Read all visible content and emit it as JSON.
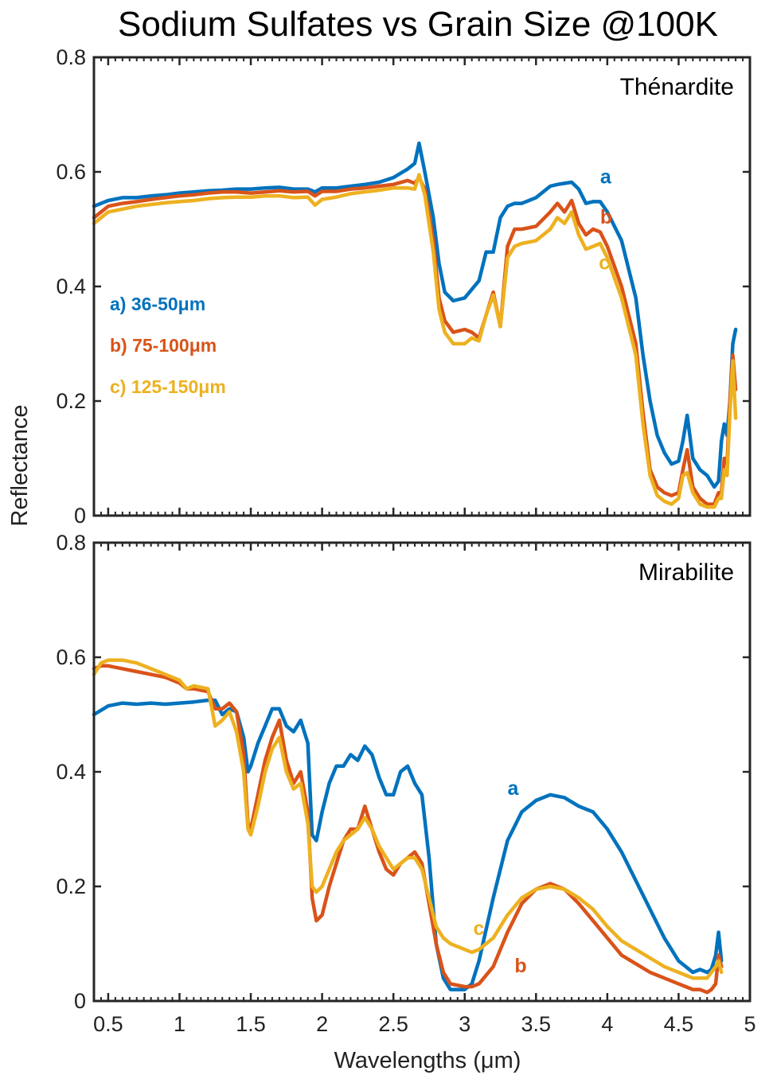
{
  "figure": {
    "title": "Sodium Sulfates vs Grain Size @100K",
    "xlabel": "Wavelengths (μm)",
    "ylabel": "Reflectance"
  },
  "colors": {
    "a": "#0072bd",
    "b": "#d95319",
    "c": "#edb120",
    "axis": "#262626"
  },
  "chart_data": [
    {
      "type": "line",
      "panel_label": "Thénardite",
      "xlim": [
        0.4,
        5.0
      ],
      "ylim": [
        0,
        0.8
      ],
      "xticks": [
        0.5,
        1,
        1.5,
        2,
        2.5,
        3,
        3.5,
        4,
        4.5,
        5
      ],
      "yticks": [
        0,
        0.2,
        0.4,
        0.6,
        0.8
      ],
      "grid": false,
      "legend": [
        {
          "text": "a) 36-50μm",
          "series": "a"
        },
        {
          "text": "b) 75-100μm",
          "series": "b"
        },
        {
          "text": "c) 125-150μm",
          "series": "c"
        }
      ],
      "curve_labels": [
        {
          "series": "a",
          "text": "a",
          "x": 3.95,
          "y": 0.58
        },
        {
          "series": "b",
          "text": "b",
          "x": 3.95,
          "y": 0.51
        },
        {
          "series": "c",
          "text": "c",
          "x": 3.94,
          "y": 0.43
        }
      ],
      "series": [
        {
          "name": "a",
          "x": [
            0.4,
            0.5,
            0.6,
            0.7,
            0.8,
            0.9,
            1.0,
            1.1,
            1.2,
            1.3,
            1.4,
            1.5,
            1.6,
            1.7,
            1.8,
            1.9,
            1.95,
            2.0,
            2.1,
            2.2,
            2.3,
            2.4,
            2.5,
            2.6,
            2.65,
            2.68,
            2.72,
            2.78,
            2.82,
            2.86,
            2.92,
            3.0,
            3.1,
            3.15,
            3.2,
            3.25,
            3.3,
            3.35,
            3.4,
            3.5,
            3.6,
            3.65,
            3.7,
            3.75,
            3.8,
            3.85,
            3.9,
            3.95,
            4.0,
            4.1,
            4.2,
            4.25,
            4.3,
            4.35,
            4.4,
            4.45,
            4.5,
            4.53,
            4.56,
            4.6,
            4.65,
            4.7,
            4.75,
            4.78,
            4.8,
            4.82,
            4.84,
            4.86,
            4.88,
            4.9
          ],
          "y": [
            0.54,
            0.55,
            0.555,
            0.555,
            0.558,
            0.56,
            0.563,
            0.565,
            0.567,
            0.568,
            0.57,
            0.57,
            0.572,
            0.573,
            0.57,
            0.57,
            0.565,
            0.572,
            0.572,
            0.575,
            0.578,
            0.582,
            0.59,
            0.605,
            0.615,
            0.65,
            0.6,
            0.52,
            0.44,
            0.39,
            0.375,
            0.38,
            0.41,
            0.46,
            0.46,
            0.52,
            0.54,
            0.545,
            0.545,
            0.555,
            0.575,
            0.578,
            0.58,
            0.582,
            0.57,
            0.545,
            0.548,
            0.548,
            0.53,
            0.48,
            0.38,
            0.28,
            0.2,
            0.14,
            0.11,
            0.09,
            0.095,
            0.13,
            0.175,
            0.1,
            0.08,
            0.07,
            0.05,
            0.06,
            0.13,
            0.16,
            0.14,
            0.2,
            0.3,
            0.325
          ]
        },
        {
          "name": "b",
          "x": [
            0.4,
            0.5,
            0.6,
            0.7,
            0.8,
            0.9,
            1.0,
            1.1,
            1.2,
            1.3,
            1.4,
            1.5,
            1.6,
            1.7,
            1.8,
            1.9,
            1.95,
            2.0,
            2.1,
            2.2,
            2.3,
            2.4,
            2.5,
            2.6,
            2.65,
            2.68,
            2.72,
            2.78,
            2.82,
            2.86,
            2.92,
            3.0,
            3.05,
            3.1,
            3.15,
            3.2,
            3.25,
            3.3,
            3.35,
            3.4,
            3.5,
            3.6,
            3.65,
            3.7,
            3.75,
            3.8,
            3.85,
            3.9,
            3.95,
            4.0,
            4.1,
            4.2,
            4.25,
            4.3,
            4.35,
            4.4,
            4.45,
            4.5,
            4.53,
            4.56,
            4.6,
            4.65,
            4.7,
            4.75,
            4.78,
            4.8,
            4.82,
            4.84,
            4.86,
            4.88,
            4.9
          ],
          "y": [
            0.52,
            0.54,
            0.545,
            0.548,
            0.552,
            0.555,
            0.558,
            0.56,
            0.563,
            0.565,
            0.565,
            0.563,
            0.565,
            0.567,
            0.565,
            0.566,
            0.558,
            0.566,
            0.566,
            0.57,
            0.572,
            0.575,
            0.578,
            0.585,
            0.58,
            0.59,
            0.57,
            0.48,
            0.38,
            0.34,
            0.32,
            0.325,
            0.32,
            0.31,
            0.35,
            0.39,
            0.33,
            0.47,
            0.5,
            0.5,
            0.505,
            0.53,
            0.545,
            0.53,
            0.55,
            0.51,
            0.49,
            0.5,
            0.495,
            0.47,
            0.4,
            0.3,
            0.18,
            0.08,
            0.05,
            0.04,
            0.035,
            0.04,
            0.08,
            0.115,
            0.05,
            0.03,
            0.02,
            0.02,
            0.04,
            0.04,
            0.1,
            0.09,
            0.2,
            0.28,
            0.22
          ]
        },
        {
          "name": "c",
          "x": [
            0.4,
            0.5,
            0.6,
            0.7,
            0.8,
            0.9,
            1.0,
            1.1,
            1.2,
            1.3,
            1.4,
            1.5,
            1.6,
            1.7,
            1.8,
            1.9,
            1.95,
            2.0,
            2.1,
            2.2,
            2.3,
            2.4,
            2.5,
            2.6,
            2.65,
            2.68,
            2.72,
            2.78,
            2.82,
            2.86,
            2.92,
            3.0,
            3.05,
            3.1,
            3.15,
            3.2,
            3.25,
            3.3,
            3.35,
            3.4,
            3.5,
            3.6,
            3.65,
            3.7,
            3.75,
            3.8,
            3.85,
            3.9,
            3.95,
            4.0,
            4.1,
            4.2,
            4.25,
            4.3,
            4.35,
            4.4,
            4.45,
            4.5,
            4.53,
            4.56,
            4.6,
            4.65,
            4.7,
            4.75,
            4.78,
            4.8,
            4.82,
            4.84,
            4.86,
            4.88,
            4.9
          ],
          "y": [
            0.51,
            0.53,
            0.535,
            0.54,
            0.543,
            0.546,
            0.548,
            0.55,
            0.553,
            0.555,
            0.556,
            0.556,
            0.558,
            0.558,
            0.555,
            0.556,
            0.542,
            0.552,
            0.556,
            0.562,
            0.565,
            0.568,
            0.572,
            0.572,
            0.57,
            0.595,
            0.56,
            0.46,
            0.36,
            0.32,
            0.3,
            0.3,
            0.31,
            0.305,
            0.35,
            0.385,
            0.33,
            0.45,
            0.47,
            0.475,
            0.48,
            0.5,
            0.52,
            0.51,
            0.53,
            0.49,
            0.465,
            0.47,
            0.475,
            0.45,
            0.38,
            0.28,
            0.16,
            0.07,
            0.035,
            0.025,
            0.02,
            0.03,
            0.07,
            0.075,
            0.04,
            0.02,
            0.015,
            0.015,
            0.03,
            0.03,
            0.08,
            0.07,
            0.18,
            0.27,
            0.17
          ]
        }
      ]
    },
    {
      "type": "line",
      "panel_label": "Mirabilite",
      "xlim": [
        0.4,
        5.0
      ],
      "ylim": [
        0,
        0.8
      ],
      "xticks": [
        0.5,
        1,
        1.5,
        2,
        2.5,
        3,
        3.5,
        4,
        4.5,
        5
      ],
      "yticks": [
        0,
        0.2,
        0.4,
        0.6,
        0.8
      ],
      "grid": false,
      "curve_labels": [
        {
          "series": "a",
          "text": "a",
          "x": 3.3,
          "y": 0.36
        },
        {
          "series": "b",
          "text": "b",
          "x": 3.35,
          "y": 0.05
        },
        {
          "series": "c",
          "text": "c",
          "x": 3.06,
          "y": 0.115
        }
      ],
      "series": [
        {
          "name": "a",
          "x": [
            0.4,
            0.5,
            0.6,
            0.7,
            0.8,
            0.9,
            1.0,
            1.1,
            1.2,
            1.25,
            1.3,
            1.35,
            1.4,
            1.45,
            1.48,
            1.5,
            1.55,
            1.6,
            1.65,
            1.7,
            1.75,
            1.8,
            1.85,
            1.9,
            1.93,
            1.96,
            2.0,
            2.05,
            2.1,
            2.15,
            2.2,
            2.25,
            2.3,
            2.35,
            2.4,
            2.45,
            2.5,
            2.55,
            2.6,
            2.65,
            2.7,
            2.75,
            2.8,
            2.85,
            2.9,
            3.0,
            3.05,
            3.1,
            3.2,
            3.3,
            3.4,
            3.5,
            3.6,
            3.7,
            3.8,
            3.9,
            4.0,
            4.1,
            4.2,
            4.3,
            4.4,
            4.5,
            4.55,
            4.6,
            4.65,
            4.7,
            4.73,
            4.76,
            4.78,
            4.8
          ],
          "y": [
            0.5,
            0.515,
            0.52,
            0.518,
            0.52,
            0.518,
            0.52,
            0.522,
            0.525,
            0.525,
            0.5,
            0.51,
            0.505,
            0.46,
            0.4,
            0.41,
            0.45,
            0.48,
            0.51,
            0.51,
            0.48,
            0.47,
            0.49,
            0.45,
            0.29,
            0.28,
            0.33,
            0.38,
            0.41,
            0.41,
            0.43,
            0.42,
            0.445,
            0.43,
            0.39,
            0.36,
            0.36,
            0.4,
            0.41,
            0.38,
            0.36,
            0.25,
            0.1,
            0.04,
            0.02,
            0.02,
            0.03,
            0.07,
            0.18,
            0.28,
            0.33,
            0.35,
            0.36,
            0.355,
            0.34,
            0.33,
            0.3,
            0.26,
            0.21,
            0.16,
            0.11,
            0.07,
            0.06,
            0.05,
            0.055,
            0.05,
            0.055,
            0.08,
            0.12,
            0.07
          ]
        },
        {
          "name": "b",
          "x": [
            0.4,
            0.45,
            0.5,
            0.6,
            0.7,
            0.8,
            0.9,
            1.0,
            1.05,
            1.1,
            1.2,
            1.25,
            1.3,
            1.35,
            1.4,
            1.45,
            1.48,
            1.5,
            1.55,
            1.6,
            1.65,
            1.7,
            1.75,
            1.8,
            1.85,
            1.9,
            1.93,
            1.96,
            2.0,
            2.05,
            2.1,
            2.15,
            2.2,
            2.25,
            2.3,
            2.35,
            2.4,
            2.45,
            2.5,
            2.55,
            2.6,
            2.65,
            2.7,
            2.75,
            2.8,
            2.85,
            2.9,
            3.0,
            3.05,
            3.1,
            3.2,
            3.3,
            3.4,
            3.5,
            3.6,
            3.7,
            3.8,
            3.9,
            4.0,
            4.1,
            4.2,
            4.3,
            4.4,
            4.5,
            4.55,
            4.6,
            4.65,
            4.7,
            4.73,
            4.76,
            4.78,
            4.8
          ],
          "y": [
            0.58,
            0.585,
            0.585,
            0.58,
            0.575,
            0.57,
            0.565,
            0.555,
            0.545,
            0.545,
            0.54,
            0.51,
            0.51,
            0.52,
            0.505,
            0.43,
            0.31,
            0.3,
            0.36,
            0.42,
            0.46,
            0.49,
            0.42,
            0.38,
            0.4,
            0.33,
            0.18,
            0.14,
            0.15,
            0.2,
            0.24,
            0.28,
            0.3,
            0.3,
            0.34,
            0.3,
            0.26,
            0.23,
            0.22,
            0.24,
            0.25,
            0.26,
            0.24,
            0.17,
            0.1,
            0.05,
            0.03,
            0.025,
            0.025,
            0.03,
            0.06,
            0.12,
            0.17,
            0.195,
            0.205,
            0.195,
            0.17,
            0.14,
            0.11,
            0.08,
            0.065,
            0.05,
            0.04,
            0.03,
            0.025,
            0.02,
            0.02,
            0.015,
            0.02,
            0.03,
            0.08,
            0.06
          ]
        },
        {
          "name": "c",
          "x": [
            0.4,
            0.45,
            0.5,
            0.6,
            0.7,
            0.8,
            0.9,
            1.0,
            1.05,
            1.1,
            1.2,
            1.25,
            1.3,
            1.35,
            1.4,
            1.45,
            1.48,
            1.5,
            1.55,
            1.6,
            1.65,
            1.7,
            1.75,
            1.8,
            1.85,
            1.9,
            1.93,
            1.96,
            2.0,
            2.05,
            2.1,
            2.15,
            2.2,
            2.25,
            2.3,
            2.35,
            2.4,
            2.45,
            2.5,
            2.55,
            2.6,
            2.65,
            2.7,
            2.75,
            2.8,
            2.85,
            2.9,
            3.0,
            3.05,
            3.1,
            3.2,
            3.3,
            3.4,
            3.5,
            3.6,
            3.7,
            3.8,
            3.9,
            4.0,
            4.1,
            4.2,
            4.3,
            4.4,
            4.5,
            4.55,
            4.6,
            4.65,
            4.7,
            4.73,
            4.76,
            4.78,
            4.8
          ],
          "y": [
            0.57,
            0.59,
            0.595,
            0.595,
            0.59,
            0.58,
            0.57,
            0.56,
            0.545,
            0.55,
            0.545,
            0.48,
            0.49,
            0.505,
            0.47,
            0.4,
            0.3,
            0.29,
            0.34,
            0.4,
            0.44,
            0.46,
            0.4,
            0.37,
            0.38,
            0.31,
            0.2,
            0.19,
            0.2,
            0.23,
            0.26,
            0.28,
            0.29,
            0.3,
            0.32,
            0.3,
            0.27,
            0.25,
            0.23,
            0.24,
            0.25,
            0.25,
            0.23,
            0.18,
            0.13,
            0.11,
            0.1,
            0.09,
            0.085,
            0.09,
            0.11,
            0.15,
            0.18,
            0.195,
            0.2,
            0.195,
            0.18,
            0.16,
            0.13,
            0.105,
            0.09,
            0.075,
            0.06,
            0.05,
            0.045,
            0.04,
            0.04,
            0.04,
            0.05,
            0.06,
            0.07,
            0.05
          ]
        }
      ]
    }
  ]
}
